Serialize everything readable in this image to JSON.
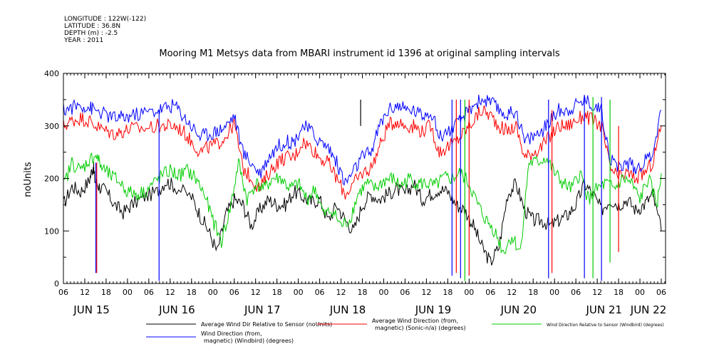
{
  "meta": {
    "longitude": "LONGITUDE : 122W(-122)",
    "latitude": "LATITUDE : 36.8N",
    "depth": "DEPTH (m) : -2.5",
    "year": "YEAR : 2011"
  },
  "chart_data": {
    "type": "line",
    "title": "Mooring M1 Metsys data from MBARI instrument id 1396 at original sampling intervals",
    "ylabel": "noUnits",
    "xlabel": "",
    "ylim": [
      0,
      400
    ],
    "yticks": [
      0,
      100,
      200,
      300,
      400
    ],
    "xlim": [
      0,
      7.05
    ],
    "x_hour_ticks": [
      {
        "x": 0.0,
        "label": "06"
      },
      {
        "x": 0.25,
        "label": "12"
      },
      {
        "x": 0.5,
        "label": "18"
      },
      {
        "x": 0.75,
        "label": "00"
      },
      {
        "x": 1.0,
        "label": "06"
      },
      {
        "x": 1.25,
        "label": "12"
      },
      {
        "x": 1.5,
        "label": "18"
      },
      {
        "x": 1.75,
        "label": "00"
      },
      {
        "x": 2.0,
        "label": "06"
      },
      {
        "x": 2.25,
        "label": "12"
      },
      {
        "x": 2.5,
        "label": "18"
      },
      {
        "x": 2.75,
        "label": "00"
      },
      {
        "x": 3.0,
        "label": "06"
      },
      {
        "x": 3.25,
        "label": "12"
      },
      {
        "x": 3.5,
        "label": "18"
      },
      {
        "x": 3.75,
        "label": "00"
      },
      {
        "x": 4.0,
        "label": "06"
      },
      {
        "x": 4.25,
        "label": "12"
      },
      {
        "x": 4.5,
        "label": "18"
      },
      {
        "x": 4.75,
        "label": "00"
      },
      {
        "x": 5.0,
        "label": "06"
      },
      {
        "x": 5.25,
        "label": "12"
      },
      {
        "x": 5.5,
        "label": "18"
      },
      {
        "x": 5.75,
        "label": "00"
      },
      {
        "x": 6.0,
        "label": "06"
      },
      {
        "x": 6.25,
        "label": "12"
      },
      {
        "x": 6.5,
        "label": "18"
      },
      {
        "x": 6.75,
        "label": "00"
      },
      {
        "x": 7.0,
        "label": "06"
      }
    ],
    "x_day_labels": [
      {
        "x": 0.33,
        "label": "JUN 15"
      },
      {
        "x": 1.33,
        "label": "JUN 16"
      },
      {
        "x": 2.33,
        "label": "JUN 17"
      },
      {
        "x": 3.33,
        "label": "JUN 18"
      },
      {
        "x": 4.33,
        "label": "JUN 19"
      },
      {
        "x": 5.33,
        "label": "JUN 20"
      },
      {
        "x": 6.33,
        "label": "JUN 21"
      },
      {
        "x": 6.85,
        "label": "JUN 22"
      }
    ],
    "series": [
      {
        "name": "Average Wind Dir Relative to Sensor (noUnits)",
        "color": "#000000",
        "x": [
          0,
          0.1,
          0.2,
          0.3,
          0.35,
          0.37,
          0.42,
          0.5,
          0.6,
          0.7,
          0.8,
          0.95,
          1.1,
          1.2,
          1.3,
          1.5,
          1.6,
          1.7,
          1.8,
          1.9,
          2.0,
          2.1,
          2.2,
          2.3,
          2.4,
          2.5,
          2.6,
          2.7,
          2.8,
          2.9,
          3.0,
          3.1,
          3.2,
          3.3,
          3.4,
          3.5,
          3.6,
          3.7,
          3.8,
          3.9,
          4.0,
          4.1,
          4.2,
          4.3,
          4.4,
          4.5,
          4.6,
          4.7,
          4.8,
          4.9,
          5.0,
          5.1,
          5.2,
          5.3,
          5.4,
          5.5,
          5.6,
          5.7,
          5.8,
          5.9,
          6.0,
          6.1,
          6.2,
          6.3,
          6.4,
          6.5,
          6.6,
          6.7,
          6.8,
          6.9,
          7.0
        ],
        "values": [
          150,
          185,
          175,
          195,
          225,
          195,
          185,
          175,
          150,
          135,
          150,
          165,
          175,
          195,
          185,
          165,
          130,
          100,
          60,
          130,
          160,
          150,
          110,
          140,
          160,
          150,
          150,
          175,
          165,
          155,
          160,
          120,
          150,
          120,
          100,
          150,
          170,
          160,
          170,
          180,
          170,
          190,
          160,
          170,
          180,
          175,
          150,
          140,
          110,
          70,
          40,
          70,
          170,
          190,
          140,
          120,
          120,
          110,
          120,
          130,
          150,
          190,
          170,
          140,
          160,
          150,
          160,
          140,
          150,
          170,
          100
        ]
      },
      {
        "name": "Average Wind Direction (from, magnetic) (Sonic-n/a) (degrees)",
        "color": "#ff0000",
        "x": [
          0,
          0.1,
          0.2,
          0.3,
          0.38,
          0.5,
          0.6,
          0.7,
          0.8,
          0.95,
          1.1,
          1.2,
          1.3,
          1.4,
          1.5,
          1.6,
          1.7,
          1.8,
          1.9,
          2.0,
          2.1,
          2.2,
          2.3,
          2.4,
          2.5,
          2.6,
          2.7,
          2.8,
          2.9,
          3.0,
          3.1,
          3.2,
          3.3,
          3.4,
          3.5,
          3.6,
          3.7,
          3.8,
          3.9,
          4.0,
          4.1,
          4.2,
          4.3,
          4.4,
          4.5,
          4.6,
          4.7,
          4.8,
          4.9,
          5.0,
          5.1,
          5.2,
          5.3,
          5.4,
          5.5,
          5.6,
          5.7,
          5.8,
          5.9,
          6.0,
          6.1,
          6.2,
          6.3,
          6.4,
          6.5,
          6.6,
          6.7,
          6.8,
          6.9,
          7.0
        ],
        "values": [
          300,
          310,
          315,
          310,
          300,
          290,
          285,
          290,
          295,
          295,
          300,
          300,
          300,
          290,
          270,
          250,
          260,
          265,
          280,
          305,
          220,
          200,
          180,
          210,
          230,
          240,
          240,
          270,
          260,
          240,
          230,
          200,
          170,
          190,
          210,
          220,
          260,
          300,
          310,
          300,
          300,
          290,
          300,
          250,
          260,
          270,
          290,
          310,
          330,
          320,
          300,
          290,
          300,
          240,
          250,
          260,
          280,
          300,
          300,
          310,
          320,
          310,
          300,
          220,
          200,
          210,
          200,
          210,
          230,
          300
        ]
      },
      {
        "name": "Wind Direction Relative to Sensor (Windbird) (degrees)",
        "color": "#00cc00",
        "x": [
          0,
          0.1,
          0.2,
          0.3,
          0.38,
          0.45,
          0.55,
          0.65,
          0.75,
          0.85,
          0.95,
          1.05,
          1.15,
          1.25,
          1.35,
          1.45,
          1.55,
          1.65,
          1.75,
          1.85,
          1.95,
          2.05,
          2.15,
          2.25,
          2.35,
          2.45,
          2.55,
          2.65,
          2.75,
          2.85,
          2.95,
          3.05,
          3.15,
          3.25,
          3.35,
          3.45,
          3.55,
          3.65,
          3.75,
          3.85,
          3.95,
          4.05,
          4.15,
          4.25,
          4.35,
          4.45,
          4.55,
          4.65,
          4.75,
          4.85,
          4.95,
          5.05,
          5.15,
          5.25,
          5.35,
          5.45,
          5.55,
          5.65,
          5.75,
          5.85,
          5.95,
          6.05,
          6.15,
          6.25,
          6.35,
          6.45,
          6.55,
          6.65,
          6.75,
          6.85,
          6.95,
          7.0
        ],
        "values": [
          185,
          230,
          215,
          235,
          245,
          220,
          205,
          195,
          175,
          170,
          175,
          190,
          205,
          215,
          205,
          215,
          200,
          170,
          120,
          80,
          140,
          230,
          160,
          190,
          180,
          200,
          200,
          180,
          190,
          160,
          180,
          130,
          140,
          110,
          120,
          170,
          190,
          180,
          195,
          200,
          185,
          200,
          190,
          190,
          185,
          200,
          200,
          210,
          190,
          150,
          120,
          100,
          60,
          90,
          60,
          230,
          230,
          240,
          210,
          190,
          180,
          210,
          160,
          180,
          190,
          180,
          200,
          190,
          160,
          200,
          150,
          210
        ]
      },
      {
        "name": "Wind Direction (from, magnetic) (Windbird) (degrees)",
        "color": "#0000ff",
        "x": [
          0,
          0.1,
          0.2,
          0.3,
          0.38,
          0.5,
          0.6,
          0.7,
          0.8,
          0.95,
          1.1,
          1.2,
          1.3,
          1.4,
          1.5,
          1.6,
          1.7,
          1.8,
          1.9,
          2.0,
          2.1,
          2.2,
          2.3,
          2.4,
          2.5,
          2.6,
          2.7,
          2.8,
          2.9,
          3.0,
          3.1,
          3.2,
          3.3,
          3.4,
          3.5,
          3.6,
          3.7,
          3.8,
          3.9,
          4.0,
          4.1,
          4.2,
          4.3,
          4.4,
          4.5,
          4.6,
          4.7,
          4.8,
          4.9,
          5.0,
          5.1,
          5.2,
          5.3,
          5.4,
          5.5,
          5.6,
          5.7,
          5.8,
          5.9,
          6.0,
          6.1,
          6.2,
          6.3,
          6.4,
          6.5,
          6.6,
          6.7,
          6.8,
          6.9,
          7.0
        ],
        "values": [
          330,
          335,
          340,
          335,
          330,
          320,
          315,
          315,
          320,
          325,
          330,
          335,
          340,
          320,
          300,
          280,
          285,
          290,
          300,
          320,
          250,
          230,
          210,
          240,
          260,
          270,
          270,
          300,
          290,
          270,
          260,
          230,
          190,
          215,
          240,
          250,
          300,
          330,
          340,
          330,
          330,
          320,
          330,
          280,
          290,
          300,
          320,
          340,
          350,
          345,
          330,
          320,
          330,
          270,
          280,
          290,
          310,
          330,
          330,
          340,
          350,
          340,
          330,
          240,
          220,
          230,
          220,
          230,
          250,
          330
        ]
      }
    ],
    "spikes": [
      {
        "x": 0.38,
        "from": 230,
        "to": 20,
        "color": "#0000ff"
      },
      {
        "x": 0.39,
        "from": 230,
        "to": 20,
        "color": "#ff0000"
      },
      {
        "x": 1.12,
        "from": 330,
        "to": 5,
        "color": "#0000ff"
      },
      {
        "x": 3.48,
        "from": 300,
        "to": 350,
        "color": "#000000"
      },
      {
        "x": 4.55,
        "from": 350,
        "to": 15,
        "color": "#0000ff"
      },
      {
        "x": 4.6,
        "from": 350,
        "to": 20,
        "color": "#ff0000"
      },
      {
        "x": 4.65,
        "from": 350,
        "to": 10,
        "color": "#0000ff"
      },
      {
        "x": 4.7,
        "from": 350,
        "to": 5,
        "color": "#00cc00"
      },
      {
        "x": 4.75,
        "from": 350,
        "to": 15,
        "color": "#ff0000"
      },
      {
        "x": 5.68,
        "from": 350,
        "to": 10,
        "color": "#0000ff"
      },
      {
        "x": 5.72,
        "from": 330,
        "to": 20,
        "color": "#ff0000"
      },
      {
        "x": 6.1,
        "from": 355,
        "to": 10,
        "color": "#0000ff"
      },
      {
        "x": 6.2,
        "from": 355,
        "to": 10,
        "color": "#00cc00"
      },
      {
        "x": 6.3,
        "from": 355,
        "to": 5,
        "color": "#0000ff"
      },
      {
        "x": 6.4,
        "from": 350,
        "to": 40,
        "color": "#00cc00"
      },
      {
        "x": 6.5,
        "from": 300,
        "to": 60,
        "color": "#ff0000"
      }
    ],
    "legend": [
      {
        "label1": "Average Wind Dir Relative to Sensor (noUnits)",
        "label2": "",
        "color": "#000000"
      },
      {
        "label1": "Average Wind Direction (from,",
        "label2": "magnetic) (Sonic-n/a) (degrees)",
        "color": "#ff0000"
      },
      {
        "label1": "Wind Direction Relative to Sensor (Windbird) (degrees)",
        "label2": "",
        "color": "#00cc00"
      },
      {
        "label1": "Wind Direction (from,",
        "label2": "magnetic) (Windbird) (degrees)",
        "color": "#0000ff"
      }
    ]
  }
}
